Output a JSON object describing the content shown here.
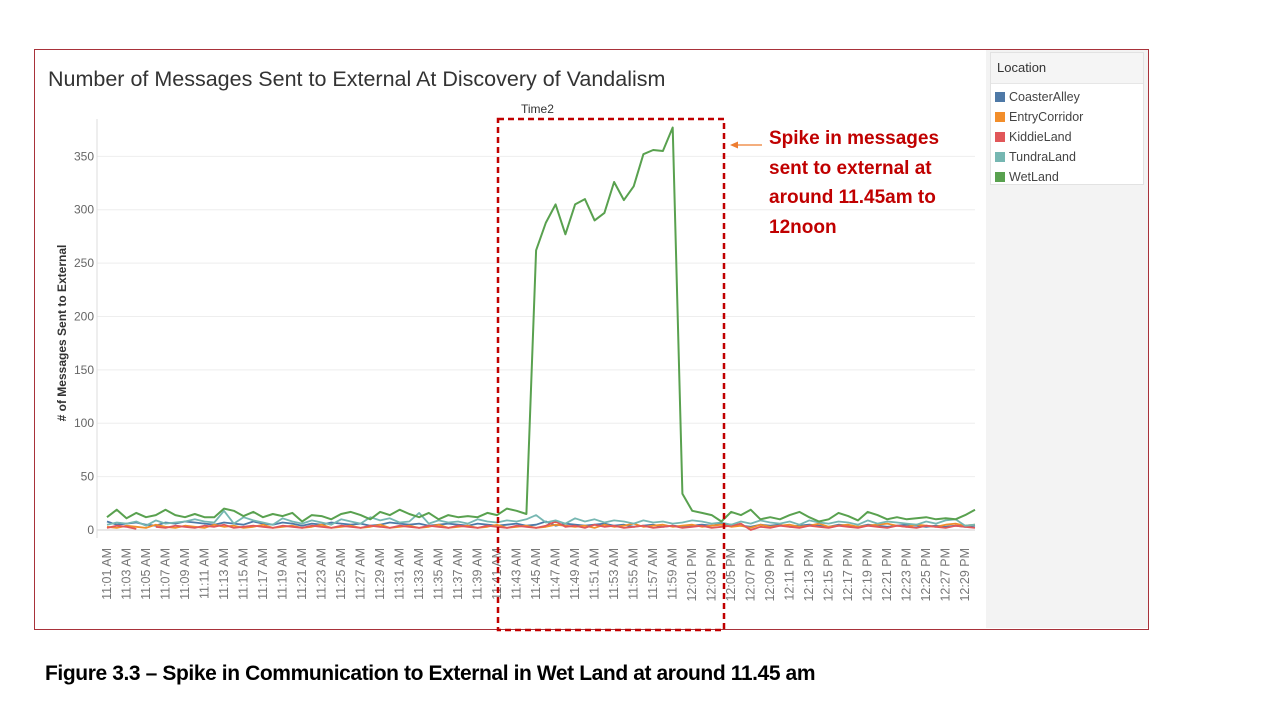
{
  "caption": "Figure 3.3 – Spike in Communication to External in Wet Land at around 11.45 am",
  "annotation": "Spike in messages sent to external at around 11.45am to 12noon",
  "legend": {
    "title": "Location",
    "items": [
      {
        "label": "CoasterAlley",
        "color": "#4e79a7"
      },
      {
        "label": "EntryCorridor",
        "color": "#f28e2b"
      },
      {
        "label": "KiddieLand",
        "color": "#e15759"
      },
      {
        "label": "TundraLand",
        "color": "#76b7b2"
      },
      {
        "label": "WetLand",
        "color": "#59a14f"
      }
    ]
  },
  "chart_data": {
    "type": "line",
    "title": "Number of Messages Sent to External At Discovery of Vandalism",
    "xlabel": "",
    "ylabel": "# of Messages Sent to External",
    "highlight_label": "Time2",
    "ylim": [
      0,
      385
    ],
    "yticks": [
      0,
      50,
      100,
      150,
      200,
      250,
      300,
      350
    ],
    "grid": "horizontal",
    "legend_position": "right",
    "x": [
      "11:01 AM",
      "11:02 AM",
      "11:03 AM",
      "11:04 AM",
      "11:05 AM",
      "11:06 AM",
      "11:07 AM",
      "11:08 AM",
      "11:09 AM",
      "11:10 AM",
      "11:11 AM",
      "11:12 AM",
      "11:13 AM",
      "11:14 AM",
      "11:15 AM",
      "11:16 AM",
      "11:17 AM",
      "11:18 AM",
      "11:19 AM",
      "11:20 AM",
      "11:21 AM",
      "11:22 AM",
      "11:23 AM",
      "11:24 AM",
      "11:25 AM",
      "11:26 AM",
      "11:27 AM",
      "11:28 AM",
      "11:29 AM",
      "11:30 AM",
      "11:31 AM",
      "11:32 AM",
      "11:33 AM",
      "11:34 AM",
      "11:35 AM",
      "11:36 AM",
      "11:37 AM",
      "11:38 AM",
      "11:39 AM",
      "11:40 AM",
      "11:41 AM",
      "11:42 AM",
      "11:43 AM",
      "11:44 AM",
      "11:45 AM",
      "11:46 AM",
      "11:47 AM",
      "11:48 AM",
      "11:49 AM",
      "11:50 AM",
      "11:51 AM",
      "11:52 AM",
      "11:53 AM",
      "11:54 AM",
      "11:55 AM",
      "11:56 AM",
      "11:57 AM",
      "11:58 AM",
      "11:59 AM",
      "12:00 PM",
      "12:01 PM",
      "12:02 PM",
      "12:03 PM",
      "12:04 PM",
      "12:05 PM",
      "12:06 PM",
      "12:07 PM",
      "12:08 PM",
      "12:09 PM",
      "12:10 PM",
      "12:11 PM",
      "12:12 PM",
      "12:13 PM",
      "12:14 PM",
      "12:15 PM",
      "12:16 PM",
      "12:17 PM",
      "12:18 PM",
      "12:19 PM",
      "12:20 PM",
      "12:21 PM",
      "12:22 PM",
      "12:23 PM",
      "12:24 PM",
      "12:25 PM",
      "12:26 PM",
      "12:27 PM",
      "12:28 PM",
      "12:29 PM",
      "12:30 PM"
    ],
    "tick_labels": [
      "11:01 AM",
      "11:03 AM",
      "11:05 AM",
      "11:07 AM",
      "11:09 AM",
      "11:11 AM",
      "11:13 AM",
      "11:15 AM",
      "11:17 AM",
      "11:19 AM",
      "11:21 AM",
      "11:23 AM",
      "11:25 AM",
      "11:27 AM",
      "11:29 AM",
      "11:31 AM",
      "11:33 AM",
      "11:35 AM",
      "11:37 AM",
      "11:39 AM",
      "11:41 AM",
      "11:43 AM",
      "11:45 AM",
      "11:47 AM",
      "11:49 AM",
      "11:51 AM",
      "11:53 AM",
      "11:55 AM",
      "11:57 AM",
      "11:59 AM",
      "12:01 PM",
      "12:03 PM",
      "12:05 PM",
      "12:07 PM",
      "12:09 PM",
      "12:11 PM",
      "12:13 PM",
      "12:15 PM",
      "12:17 PM",
      "12:19 PM",
      "12:21 PM",
      "12:23 PM",
      "12:25 PM",
      "12:27 PM",
      "12:29 PM"
    ],
    "series": [
      {
        "name": "CoasterAlley",
        "color": "#4e79a7",
        "values": [
          8,
          5,
          6,
          7,
          5,
          4,
          7,
          6,
          8,
          7,
          6,
          5,
          7,
          6,
          5,
          8,
          6,
          5,
          7,
          6,
          4,
          6,
          5,
          7,
          6,
          5,
          6,
          4,
          5,
          7,
          6,
          5,
          6,
          4,
          5,
          6,
          5,
          4,
          6,
          5,
          4,
          5,
          6,
          4,
          5,
          8,
          4,
          6,
          5,
          4,
          5,
          6,
          4,
          5,
          3,
          4,
          5,
          3,
          4,
          3,
          4,
          5,
          4,
          6,
          5,
          4,
          3,
          5,
          4,
          5,
          3,
          4,
          5,
          4,
          3,
          5,
          4,
          3,
          5,
          4,
          3,
          4,
          5,
          4,
          3,
          4,
          3,
          4,
          3,
          4
        ]
      },
      {
        "name": "EntryCorridor",
        "color": "#f28e2b",
        "values": [
          3,
          2,
          4,
          3,
          2,
          5,
          3,
          2,
          4,
          3,
          2,
          5,
          3,
          4,
          2,
          3,
          5,
          2,
          3,
          4,
          2,
          3,
          5,
          2,
          3,
          4,
          2,
          3,
          5,
          2,
          3,
          4,
          2,
          3,
          5,
          2,
          3,
          4,
          2,
          3,
          5,
          2,
          3,
          4,
          2,
          3,
          5,
          4,
          3,
          4,
          2,
          5,
          3,
          4,
          6,
          3,
          4,
          5,
          3,
          4,
          5,
          3,
          4,
          5,
          3,
          4,
          2,
          5,
          3,
          4,
          5,
          3,
          4,
          6,
          3,
          4,
          5,
          3,
          4,
          5,
          6,
          4,
          3,
          5,
          4,
          3,
          5,
          6,
          4,
          5
        ]
      },
      {
        "name": "KiddieLand",
        "color": "#e15759",
        "values": [
          2,
          4,
          3,
          1,
          null,
          3,
          2,
          4,
          3,
          2,
          4,
          3,
          5,
          2,
          3,
          4,
          3,
          2,
          4,
          3,
          2,
          4,
          3,
          2,
          4,
          3,
          2,
          4,
          3,
          2,
          4,
          3,
          2,
          4,
          3,
          2,
          4,
          3,
          2,
          4,
          3,
          2,
          4,
          3,
          2,
          4,
          8,
          3,
          4,
          2,
          5,
          3,
          4,
          2,
          3,
          4,
          2,
          3,
          4,
          2,
          3,
          4,
          2,
          3,
          4,
          6,
          0,
          3,
          2,
          4,
          3,
          2,
          4,
          3,
          2,
          4,
          3,
          2,
          4,
          3,
          2,
          4,
          3,
          2,
          4,
          3,
          2,
          4,
          3,
          2
        ]
      },
      {
        "name": "TundraLand",
        "color": "#76b7b2",
        "values": [
          5,
          7,
          6,
          8,
          4,
          9,
          6,
          7,
          8,
          10,
          8,
          7,
          18,
          6,
          12,
          9,
          7,
          5,
          11,
          8,
          6,
          9,
          7,
          5,
          10,
          8,
          6,
          12,
          9,
          11,
          7,
          8,
          16,
          6,
          9,
          7,
          8,
          6,
          10,
          8,
          7,
          9,
          8,
          10,
          14,
          7,
          9,
          6,
          11,
          8,
          10,
          7,
          9,
          8,
          6,
          9,
          7,
          8,
          6,
          7,
          9,
          8,
          6,
          7,
          5,
          8,
          6,
          9,
          7,
          6,
          8,
          5,
          9,
          7,
          6,
          8,
          7,
          5,
          9,
          6,
          8,
          7,
          6,
          5,
          8,
          6,
          9,
          10,
          4,
          5
        ]
      },
      {
        "name": "WetLand",
        "color": "#59a14f",
        "values": [
          12,
          19,
          11,
          16,
          12,
          14,
          19,
          14,
          12,
          15,
          12,
          12,
          20,
          18,
          13,
          17,
          12,
          15,
          13,
          16,
          8,
          14,
          13,
          10,
          15,
          17,
          14,
          10,
          17,
          14,
          19,
          15,
          12,
          16,
          10,
          14,
          12,
          13,
          12,
          16,
          14,
          20,
          18,
          15,
          262,
          288,
          305,
          277,
          305,
          310,
          290,
          297,
          326,
          309,
          322,
          352,
          356,
          355,
          377,
          34,
          18,
          16,
          14,
          8,
          17,
          14,
          19,
          10,
          12,
          10,
          14,
          17,
          12,
          8,
          10,
          16,
          13,
          9,
          17,
          14,
          10,
          12,
          10,
          11,
          12,
          10,
          11,
          10,
          14,
          19
        ]
      }
    ]
  }
}
